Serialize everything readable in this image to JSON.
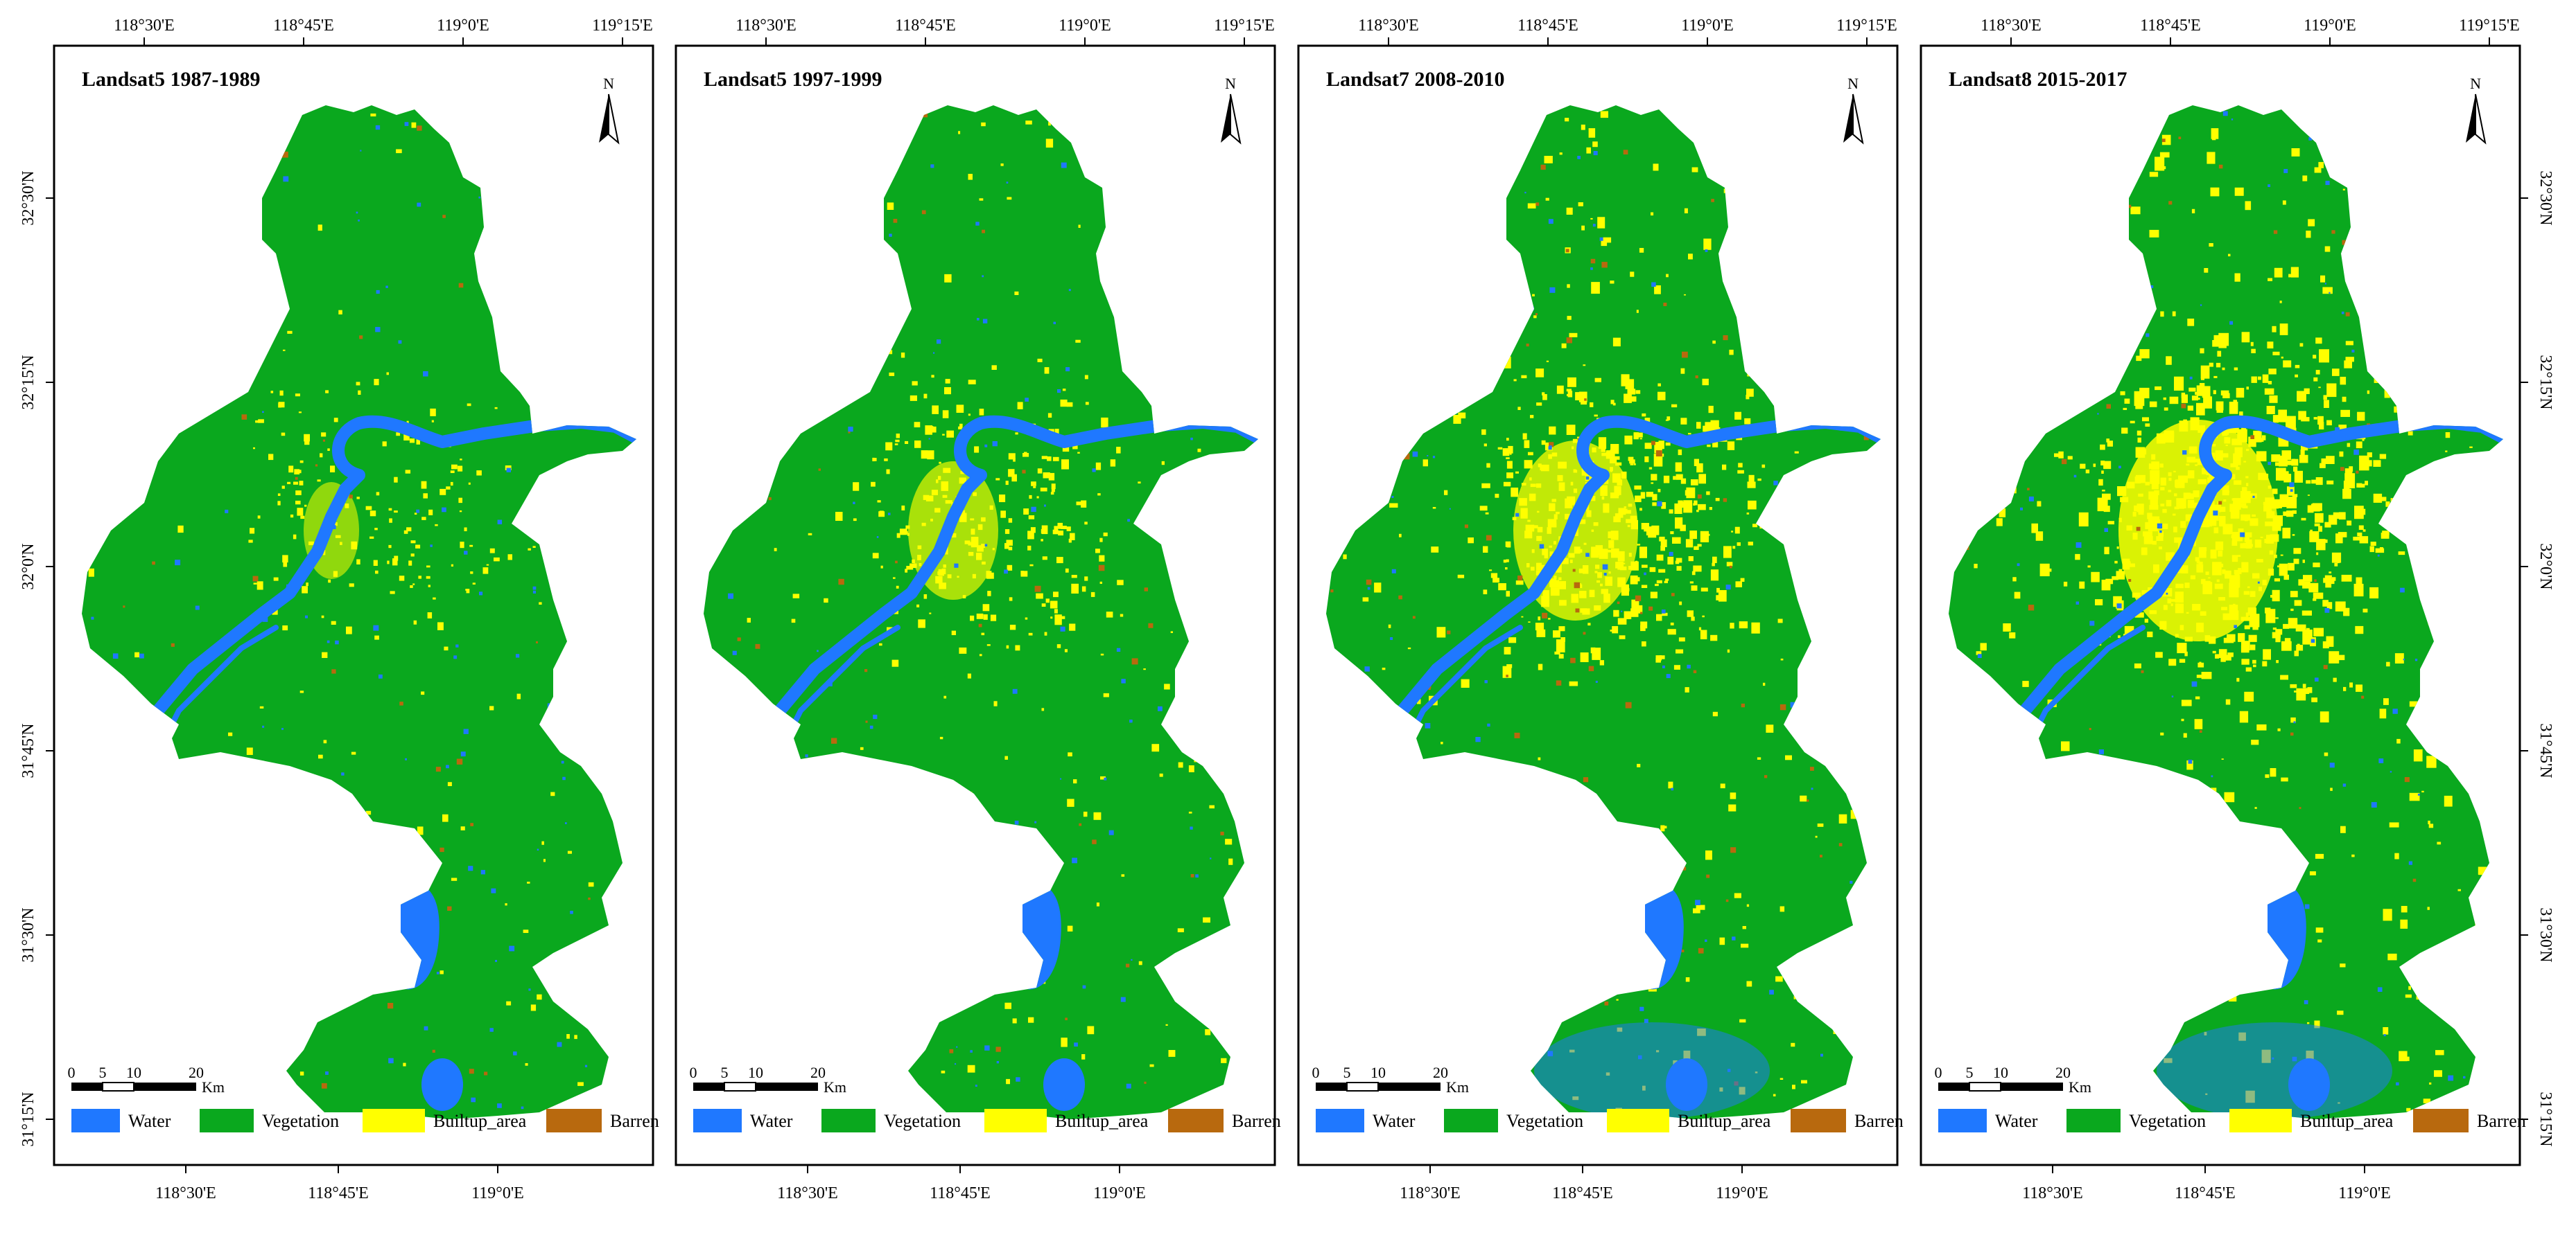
{
  "figure": {
    "panels": [
      {
        "title": "Landsat5 1987-1989",
        "top_ticks": [
          "118°30'E",
          "118°45'E",
          "119°0'E",
          "119°15'E"
        ],
        "bottom_ticks": [
          "118°30'E",
          "118°45'E",
          "119°0'E"
        ],
        "side_ticks": [
          "32°30'N",
          "32°15'N",
          "32°0'N",
          "31°45'N",
          "31°30'N",
          "31°15'N"
        ],
        "side": "left"
      },
      {
        "title": "Landsat5 1997-1999",
        "top_ticks": [
          "118°30'E",
          "118°45'E",
          "119°0'E",
          "119°15'E"
        ],
        "bottom_ticks": [
          "118°30'E",
          "118°45'E",
          "119°0'E"
        ],
        "side_ticks": [],
        "side": "none"
      },
      {
        "title": "Landsat7 2008-2010",
        "top_ticks": [
          "118°30'E",
          "118°45'E",
          "119°0'E",
          "119°15'E"
        ],
        "bottom_ticks": [
          "118°30'E",
          "118°45'E",
          "119°0'E"
        ],
        "side_ticks": [],
        "side": "none"
      },
      {
        "title": "Landsat8 2015-2017",
        "top_ticks": [
          "118°30'E",
          "118°45'E",
          "119°0'E",
          "119°15'E"
        ],
        "bottom_ticks": [
          "118°30'E",
          "118°45'E",
          "119°0'E"
        ],
        "side_ticks": [
          "32°30'N",
          "32°15'N",
          "32°0'N",
          "31°45'N",
          "31°30'N",
          "31°15'N"
        ],
        "side": "right"
      }
    ],
    "north_arrow_label": "N",
    "scale_bar": {
      "ticks": [
        "0",
        "5",
        "10",
        "20"
      ],
      "unit": "Km"
    },
    "legend": [
      {
        "label": "Water",
        "color": "#1f78ff"
      },
      {
        "label": "Vegetation",
        "color": "#0aa81e"
      },
      {
        "label": "Builtup_area",
        "color": "#ffff00"
      },
      {
        "label": "Barren",
        "color": "#b8690e"
      }
    ]
  }
}
